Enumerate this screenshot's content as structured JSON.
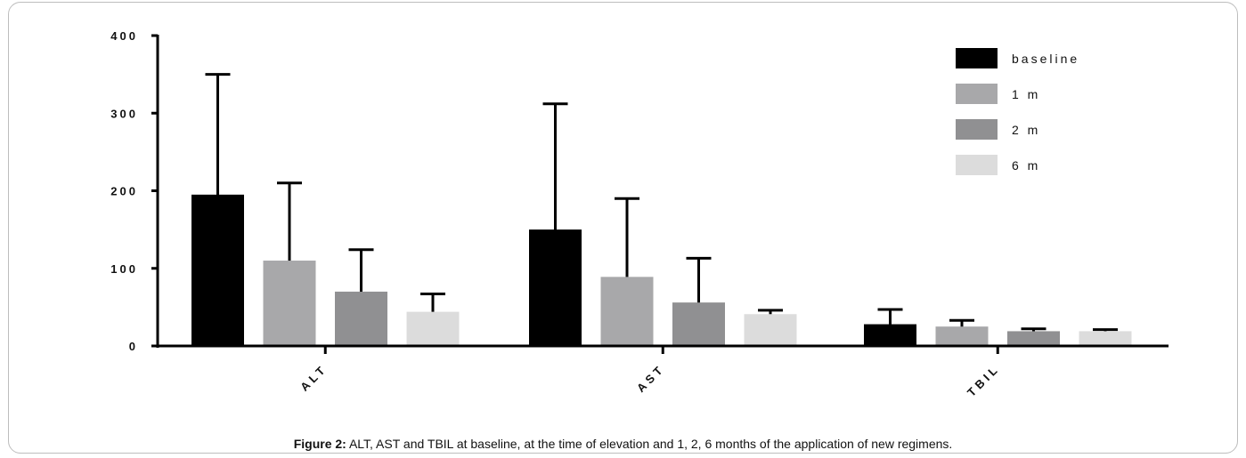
{
  "chart_data": {
    "type": "bar",
    "categories": [
      "ALT",
      "AST",
      "TBIL"
    ],
    "ylim": [
      0,
      400
    ],
    "yticks": [
      0,
      100,
      200,
      300,
      400
    ],
    "ytick_labels": [
      "0",
      "100",
      "200",
      "300",
      "400"
    ],
    "legend_position": "top-right",
    "grid": false,
    "series": [
      {
        "name": "baseline",
        "color": "#000000",
        "values": [
          195,
          150,
          28
        ],
        "errors": [
          155,
          162,
          19
        ]
      },
      {
        "name": "1 m",
        "color": "#a8a8aa",
        "values": [
          110,
          89,
          25
        ],
        "errors": [
          100,
          101,
          8
        ]
      },
      {
        "name": "2 m",
        "color": "#909092",
        "values": [
          70,
          56,
          19
        ],
        "errors": [
          54,
          57,
          3
        ]
      },
      {
        "name": "6 m",
        "color": "#dcdcdc",
        "values": [
          44,
          41,
          19
        ],
        "errors": [
          23,
          5,
          2
        ]
      }
    ]
  },
  "caption": {
    "label": "Figure 2:",
    "text": " ALT, AST and TBIL at baseline, at the time of elevation and 1, 2, 6 months of the application of new regimens."
  }
}
